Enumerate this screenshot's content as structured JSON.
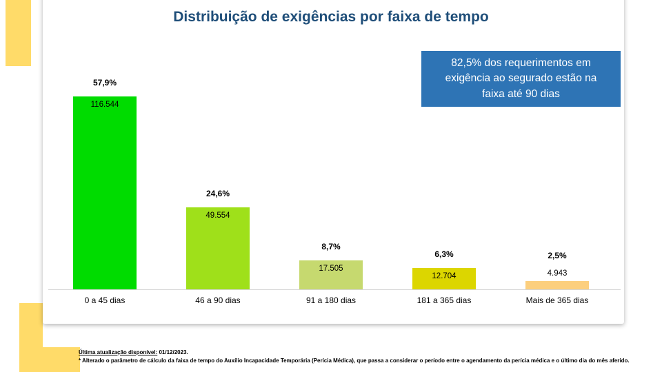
{
  "page": {
    "title": "Distribuição de exigências por faixa de tempo",
    "callout_text": "82,5% dos requerimentos em exigência ao segurado estão na faixa até 90 dias",
    "footer": {
      "line1_label": "Última atualização disponível:",
      "line1_value": "01/12/2023.",
      "line2": "* Alterado o parâmetro de cálculo da faixa de tempo do Auxílio Incapacidade Temporária (Perícia Médica), que passa a considerar o período entre o agendamento da perícia médica e o último dia do mês aferido."
    },
    "colors": {
      "accent_yellow": "#FFDB69",
      "callout_background": "#2E74B5",
      "callout_text": "#FFFFFF",
      "title_text": "#1F4E79",
      "axis_line": "#D6D6D6"
    }
  },
  "chart_data": {
    "type": "bar",
    "title": "Distribuição de exigências por faixa de tempo",
    "xlabel": "",
    "ylabel": "",
    "categories": [
      "0 a 45 dias",
      "46 a 90 dias",
      "91 a 180 dias",
      "181 a 365 dias",
      "Mais de 365 dias"
    ],
    "values": [
      116544,
      49554,
      17505,
      12704,
      4943
    ],
    "value_labels": [
      "116.544",
      "49.554",
      "17.505",
      "12.704",
      "4.943"
    ],
    "pct_labels": [
      "57,9%",
      "24,6%",
      "8,7%",
      "6,3%",
      "2,5%"
    ],
    "bar_colors": [
      "#00DC00",
      "#9FE01A",
      "#C6D96F",
      "#DCD600",
      "#FCCF7E"
    ],
    "ylim": [
      0,
      120000
    ],
    "grid": false,
    "legend": false,
    "annotation": "82,5% dos requerimentos em exigência ao segurado estão na faixa até 90 dias"
  }
}
